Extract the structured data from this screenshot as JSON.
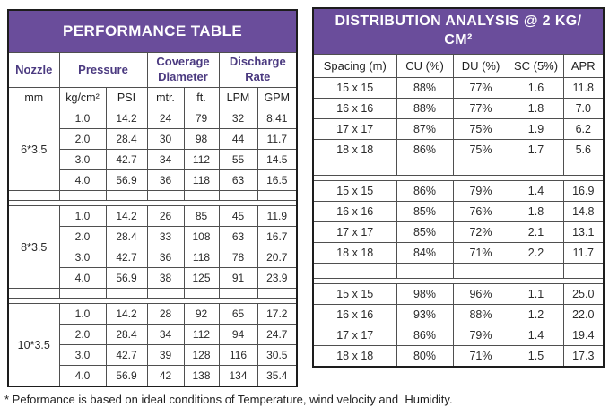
{
  "page": {
    "footnote": "* Peformance is based on ideal conditions of Temperature, wind velocity and  Humidity."
  },
  "colors": {
    "title_background": "#6a4d9b",
    "title_text": "#ffffff",
    "accent_header_text": "#4b3a80",
    "body_text": "#2a2a2a",
    "border": "#4f4f4f"
  },
  "performance_table": {
    "title": "PERFORMANCE TABLE",
    "column_groups": [
      {
        "label": "Nozzle",
        "span": 1
      },
      {
        "label": "Pressure",
        "span": 2
      },
      {
        "label": "Coverage Diameter",
        "span": 2
      },
      {
        "label": "Discharge Rate",
        "span": 2
      }
    ],
    "sub_headers": [
      "mm",
      "kg/cm²",
      "PSI",
      "mtr.",
      "ft.",
      "LPM",
      "GPM"
    ],
    "groups": [
      {
        "nozzle": "6*3.5",
        "rows": [
          [
            "1.0",
            "14.2",
            "24",
            "79",
            "32",
            "8.41"
          ],
          [
            "2.0",
            "28.4",
            "30",
            "98",
            "44",
            "11.7"
          ],
          [
            "3.0",
            "42.7",
            "34",
            "112",
            "55",
            "14.5"
          ],
          [
            "4.0",
            "56.9",
            "36",
            "118",
            "63",
            "16.5"
          ]
        ]
      },
      {
        "nozzle": "8*3.5",
        "rows": [
          [
            "1.0",
            "14.2",
            "26",
            "85",
            "45",
            "11.9"
          ],
          [
            "2.0",
            "28.4",
            "33",
            "108",
            "63",
            "16.7"
          ],
          [
            "3.0",
            "42.7",
            "36",
            "118",
            "78",
            "20.7"
          ],
          [
            "4.0",
            "56.9",
            "38",
            "125",
            "91",
            "23.9"
          ]
        ]
      },
      {
        "nozzle": "10*3.5",
        "rows": [
          [
            "1.0",
            "14.2",
            "28",
            "92",
            "65",
            "17.2"
          ],
          [
            "2.0",
            "28.4",
            "34",
            "112",
            "94",
            "24.7"
          ],
          [
            "3.0",
            "42.7",
            "39",
            "128",
            "116",
            "30.5"
          ],
          [
            "4.0",
            "56.9",
            "42",
            "138",
            "134",
            "35.4"
          ]
        ]
      }
    ]
  },
  "distribution_table": {
    "title_line1": "DISTRIBUTION ANALYSIS @ 2 KG/",
    "title_line2": "CM²",
    "headers": [
      "Spacing (m)",
      "CU (%)",
      "DU (%)",
      "SC (5%)",
      "APR"
    ],
    "groups": [
      [
        [
          "15 x 15",
          "88%",
          "77%",
          "1.6",
          "11.8"
        ],
        [
          "16 x 16",
          "88%",
          "77%",
          "1.8",
          "7.0"
        ],
        [
          "17 x 17",
          "87%",
          "75%",
          "1.9",
          "6.2"
        ],
        [
          "18 x 18",
          "86%",
          "75%",
          "1.7",
          "5.6"
        ]
      ],
      [
        [
          "15 x 15",
          "86%",
          "79%",
          "1.4",
          "16.9"
        ],
        [
          "16 x 16",
          "85%",
          "76%",
          "1.8",
          "14.8"
        ],
        [
          "17 x 17",
          "85%",
          "72%",
          "2.1",
          "13.1"
        ],
        [
          "18 x 18",
          "84%",
          "71%",
          "2.2",
          "11.7"
        ]
      ],
      [
        [
          "15 x 15",
          "98%",
          "96%",
          "1.1",
          "25.0"
        ],
        [
          "16 x 16",
          "93%",
          "88%",
          "1.2",
          "22.0"
        ],
        [
          "17 x 17",
          "86%",
          "79%",
          "1.4",
          "19.4"
        ],
        [
          "18 x 18",
          "80%",
          "71%",
          "1.5",
          "17.3"
        ]
      ]
    ]
  }
}
